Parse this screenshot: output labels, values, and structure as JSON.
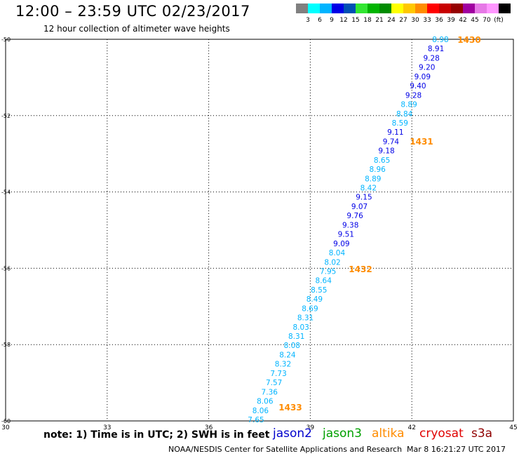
{
  "header": {
    "title": "12:00 – 23:59 UTC 02/23/2017",
    "subtitle": "12 hour collection of altimeter wave heights"
  },
  "color_scale": {
    "colors": [
      "#808080",
      "#00ffff",
      "#00b4ff",
      "#0000e6",
      "#0050b4",
      "#32e632",
      "#00b400",
      "#008c00",
      "#ffff00",
      "#ffc800",
      "#ff8c00",
      "#ff0000",
      "#c80000",
      "#960000",
      "#a000a0",
      "#e678e6",
      "#ff96ff",
      "#000000"
    ],
    "labels": [
      "3",
      "6",
      "9",
      "12",
      "15",
      "18",
      "21",
      "24",
      "27",
      "30",
      "33",
      "36",
      "39",
      "42",
      "45",
      "70",
      "(ft)"
    ]
  },
  "chart_data": {
    "type": "scatter",
    "xlim": [
      30,
      45
    ],
    "ylim": [
      -60,
      -50
    ],
    "x_ticks": [
      "30",
      "33",
      "36",
      "39",
      "42",
      "45"
    ],
    "y_ticks": [
      "-50",
      "-52",
      "-54",
      "-56",
      "-58",
      "-60"
    ],
    "grid": true,
    "points": [
      {
        "label": "8.98",
        "color": "#00b4ff"
      },
      {
        "label": "8.91",
        "color": "#0000e6"
      },
      {
        "label": "9.28",
        "color": "#0000e6"
      },
      {
        "label": "9.20",
        "color": "#0000e6"
      },
      {
        "label": "9.09",
        "color": "#0000e6"
      },
      {
        "label": "9.40",
        "color": "#0000e6"
      },
      {
        "label": "9.28",
        "color": "#0000e6"
      },
      {
        "label": "8.89",
        "color": "#00b4ff"
      },
      {
        "label": "8.84",
        "color": "#00b4ff"
      },
      {
        "label": "8.59",
        "color": "#00b4ff"
      },
      {
        "label": "9.11",
        "color": "#0000e6"
      },
      {
        "label": "9.74",
        "color": "#0000e6"
      },
      {
        "label": "9.18",
        "color": "#0000e6"
      },
      {
        "label": "8.65",
        "color": "#00b4ff"
      },
      {
        "label": "8.96",
        "color": "#00b4ff"
      },
      {
        "label": "8.89",
        "color": "#00b4ff"
      },
      {
        "label": "8.42",
        "color": "#00b4ff"
      },
      {
        "label": "9.15",
        "color": "#0000e6"
      },
      {
        "label": "9.07",
        "color": "#0000e6"
      },
      {
        "label": "9.76",
        "color": "#0000e6"
      },
      {
        "label": "9.38",
        "color": "#0000e6"
      },
      {
        "label": "9.51",
        "color": "#0000e6"
      },
      {
        "label": "9.09",
        "color": "#0000e6"
      },
      {
        "label": "8.04",
        "color": "#00b4ff"
      },
      {
        "label": "8.02",
        "color": "#00b4ff"
      },
      {
        "label": "7.95",
        "color": "#00b4ff"
      },
      {
        "label": "8.64",
        "color": "#00b4ff"
      },
      {
        "label": "8.55",
        "color": "#00b4ff"
      },
      {
        "label": "8.49",
        "color": "#00b4ff"
      },
      {
        "label": "8.69",
        "color": "#00b4ff"
      },
      {
        "label": "8.31",
        "color": "#00b4ff"
      },
      {
        "label": "8.03",
        "color": "#00b4ff"
      },
      {
        "label": "8.31",
        "color": "#00b4ff"
      },
      {
        "label": "8.08",
        "color": "#00b4ff"
      },
      {
        "label": "8.24",
        "color": "#00b4ff"
      },
      {
        "label": "8.32",
        "color": "#00b4ff"
      },
      {
        "label": "7.73",
        "color": "#00b4ff"
      },
      {
        "label": "7.57",
        "color": "#00b4ff"
      },
      {
        "label": "7.36",
        "color": "#00b4ff"
      },
      {
        "label": "8.06",
        "color": "#00b4ff"
      },
      {
        "label": "8.06",
        "color": "#00b4ff"
      },
      {
        "label": "7.65",
        "color": "#00b4ff"
      }
    ],
    "annotations": [
      {
        "text": "1430",
        "color": "#ff8c00"
      },
      {
        "text": "1431",
        "color": "#ff8c00"
      },
      {
        "text": "1432",
        "color": "#ff8c00"
      },
      {
        "text": "1433",
        "color": "#ff8c00"
      }
    ]
  },
  "footer": {
    "note": "note: 1) Time is in UTC; 2) SWH is in feet",
    "missions": [
      {
        "name": "jason2",
        "color": "#0000cc"
      },
      {
        "name": "jason3",
        "color": "#00a000"
      },
      {
        "name": "altika",
        "color": "#ff8c00"
      },
      {
        "name": "cryosat",
        "color": "#e00000"
      },
      {
        "name": "s3a",
        "color": "#900000"
      }
    ],
    "credit": "NOAA/NESDIS Center for Satellite Applications and Research",
    "timestamp": "Mar  8 16:21:27 UTC 2017"
  }
}
